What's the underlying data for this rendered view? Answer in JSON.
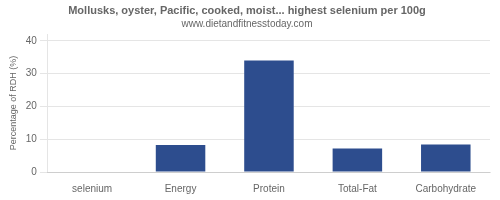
{
  "chart_data": {
    "type": "bar",
    "title": "Mollusks, oyster, Pacific, cooked, moist... highest selenium per 100g",
    "subtitle": "www.dietandfitnesstoday.com",
    "categories": [
      "selenium",
      "Energy",
      "Protein",
      "Total-Fat",
      "Carbohydrate"
    ],
    "values": [
      0,
      8.2,
      34.0,
      7.2,
      8.4
    ],
    "color": "#2d4d8e",
    "ylabel": "Percentage of RDH (%)",
    "ylim": [
      0,
      42
    ],
    "yticks": [
      0,
      10,
      20,
      30,
      40
    ],
    "grid": true
  }
}
